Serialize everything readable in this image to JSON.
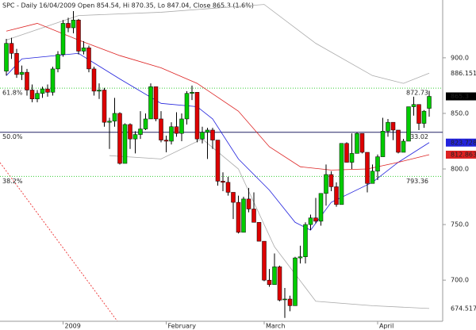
{
  "chart_data": {
    "type": "candlestick",
    "title": "SPC - Daily 16/04/2009 Open 854.54, Hi 870.35, Lo 847.04, Close 865.3 (1.6%)",
    "categories": [
      null,
      null,
      null,
      null,
      null,
      null,
      null,
      null,
      null,
      null,
      null,
      "2009",
      null,
      null,
      null,
      null,
      null,
      null,
      null,
      null,
      null,
      null,
      null,
      null,
      null,
      null,
      null,
      null,
      null,
      null,
      null,
      "February",
      null,
      null,
      null,
      null,
      null,
      null,
      null,
      null,
      null,
      null,
      null,
      null,
      null,
      null,
      null,
      null,
      null,
      null,
      "March",
      null,
      null,
      null,
      null,
      null,
      null,
      null,
      null,
      null,
      null,
      null,
      null,
      null,
      null,
      null,
      null,
      null,
      null,
      null,
      null,
      null,
      "April",
      null,
      null,
      null,
      null,
      null,
      null,
      null,
      null,
      null,
      null
    ],
    "open": [
      888,
      913,
      904,
      885,
      887,
      871,
      863,
      868,
      872,
      869,
      890,
      903,
      931,
      927,
      934,
      906,
      909,
      890,
      870,
      871,
      842,
      843,
      850,
      805,
      840,
      827,
      831,
      836,
      845,
      874,
      845,
      826,
      825,
      838,
      832,
      845,
      868,
      869,
      827,
      833,
      835,
      826,
      789,
      788,
      779,
      770,
      743,
      773,
      764,
      752,
      735,
      700,
      696,
      712,
      683,
      683,
      677,
      720,
      721,
      750,
      756,
      753,
      778,
      795,
      784,
      768,
      823,
      806,
      814,
      832,
      815,
      787,
      798,
      811,
      834,
      842,
      835,
      815,
      825,
      856,
      858,
      841,
      854.54
    ],
    "high": [
      917,
      918,
      908,
      893,
      890,
      876,
      871,
      874,
      876,
      892,
      906,
      934,
      936,
      942,
      935,
      915,
      911,
      892,
      877,
      873,
      846,
      864,
      851,
      841,
      841,
      834,
      852,
      850,
      877,
      874,
      852,
      830,
      842,
      851,
      850,
      870,
      875,
      869,
      838,
      837,
      837,
      826,
      797,
      793,
      779,
      776,
      775,
      783,
      779,
      752,
      735,
      710,
      724,
      713,
      693,
      686,
      721,
      731,
      752,
      759,
      774,
      778,
      804,
      798,
      788,
      823,
      824,
      832,
      833,
      832,
      815,
      804,
      813,
      846,
      845,
      842,
      835,
      827,
      856,
      865,
      858,
      853,
      870.35
    ],
    "low": [
      884,
      899,
      882,
      880,
      866,
      860,
      860,
      864,
      865,
      866,
      887,
      901,
      923,
      922,
      903,
      903,
      887,
      866,
      863,
      838,
      818,
      838,
      804,
      805,
      818,
      814,
      827,
      835,
      845,
      843,
      824,
      815,
      822,
      829,
      825,
      840,
      862,
      824,
      823,
      809,
      818,
      785,
      780,
      776,
      755,
      742,
      743,
      761,
      752,
      735,
      699,
      694,
      696,
      681,
      666,
      672,
      677,
      715,
      715,
      745,
      751,
      749,
      767,
      780,
      766,
      768,
      806,
      800,
      814,
      814,
      779,
      787,
      790,
      811,
      829,
      826,
      814,
      815,
      825,
      848,
      835,
      837,
      847.04
    ],
    "close": [
      913,
      904,
      885,
      887,
      871,
      863,
      868,
      872,
      869,
      890,
      903,
      931,
      927,
      934,
      906,
      909,
      890,
      870,
      871,
      842,
      843,
      850,
      805,
      840,
      827,
      831,
      836,
      845,
      874,
      845,
      826,
      825,
      838,
      832,
      845,
      868,
      869,
      827,
      833,
      835,
      826,
      789,
      788,
      779,
      770,
      743,
      773,
      764,
      752,
      735,
      700,
      696,
      712,
      682,
      683,
      677,
      720,
      721,
      750,
      756,
      753,
      778,
      795,
      784,
      768,
      823,
      806,
      814,
      832,
      815,
      787,
      798,
      811,
      834,
      842,
      835,
      815,
      825,
      856,
      858,
      841,
      852,
      865.3
    ],
    "up_color": "#00cc00",
    "down_color": "#dd0000",
    "lines": [
      {
        "color": "#aaaaaa",
        "box": false,
        "x": [
          0,
          14,
          30,
          50,
          60,
          71,
          77,
          82
        ],
        "values": [
          916,
          938,
          941,
          948,
          913,
          884,
          877,
          886.151
        ]
      },
      {
        "color": "#2222dd",
        "box": true,
        "x": [
          0,
          3,
          14,
          22,
          30,
          37,
          40,
          45,
          51,
          56,
          59,
          63,
          71,
          76,
          82
        ],
        "values": [
          884,
          899,
          904,
          881,
          859,
          856,
          845,
          809,
          781,
          752,
          745,
          770,
          788,
          806,
          823.728
        ]
      },
      {
        "color": "#dd2222",
        "box": true,
        "x": [
          0,
          6,
          14,
          22,
          30,
          37,
          45,
          51,
          57,
          63,
          70,
          76,
          82
        ],
        "values": [
          924,
          931,
          916,
          902,
          891,
          877,
          852,
          820,
          802,
          799,
          800,
          806,
          812.863
        ]
      },
      {
        "color": "#aaaaaa",
        "box": false,
        "x": [
          20,
          30,
          38,
          45,
          52,
          60,
          71,
          82
        ],
        "values": [
          812,
          809,
          827,
          800,
          730,
          681,
          677,
          674.517
        ]
      }
    ],
    "levels": [
      {
        "label": "61.8%",
        "value": 872.73,
        "color": "#33cc33"
      },
      {
        "label": "50.0%",
        "value": 833.02,
        "color": "#222266"
      },
      {
        "label": "38.2%",
        "value": 793.36,
        "color": "#33cc33"
      }
    ],
    "ylim": [
      663,
      952
    ],
    "yticks": [
      {
        "value": 700,
        "label": "700.0"
      },
      {
        "value": 750,
        "label": "750.0"
      },
      {
        "value": 800,
        "label": "800.0"
      },
      {
        "value": 850,
        "label": "850.0"
      },
      {
        "value": 900,
        "label": "900.0"
      }
    ]
  }
}
